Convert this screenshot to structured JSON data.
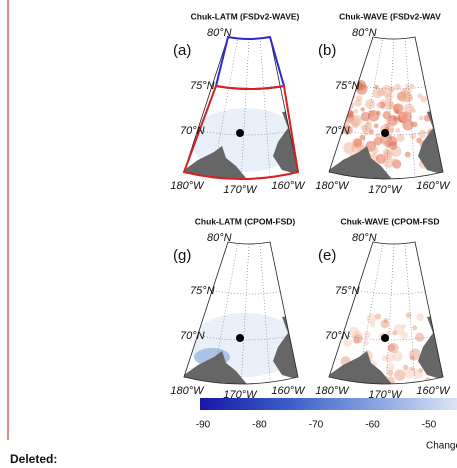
{
  "panels": [
    {
      "title": "Chuk-LATM (FSDv2-WAVE)",
      "letter": "(a)",
      "lat_labels": [
        "80°N",
        "75°N",
        "70°N"
      ],
      "lon_labels": [
        "180°W",
        "170°W",
        "160°W"
      ]
    },
    {
      "title": "Chuk-WAVE (FSDv2-WAV",
      "letter": "(b)",
      "lat_labels": [
        "80°N",
        "75°N",
        "70°N"
      ],
      "lon_labels": [
        "180°W",
        "170°W",
        "160°W"
      ]
    },
    {
      "title": "Chuk-LATM (CPOM-FSD)",
      "letter": "(g)",
      "lat_labels": [
        "80°N",
        "75°N",
        "70°N"
      ],
      "lon_labels": [
        "180°W",
        "170°W",
        "160°W"
      ]
    },
    {
      "title": "Chuk-WAVE (CPOM-FSD",
      "letter": "(e)",
      "lat_labels": [
        "80°N",
        "75°N",
        "70°N"
      ],
      "lon_labels": [
        "180°W",
        "170°W",
        "160°W"
      ]
    }
  ],
  "colorbar": {
    "ticks": [
      -90,
      -80,
      -70,
      -60,
      -50
    ],
    "label": "Change"
  },
  "deleted_label": "Deleted:"
}
